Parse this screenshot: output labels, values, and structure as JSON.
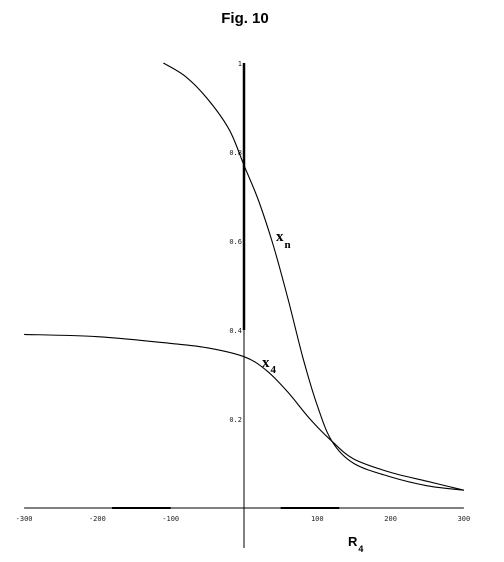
{
  "title": "Fig. 10",
  "chart_data": {
    "type": "line",
    "title": "Fig. 10",
    "xlabel": "R",
    "xlabel_sub": "4",
    "ylabel": "",
    "xlim": [
      -300,
      300
    ],
    "ylim": [
      0,
      1
    ],
    "x_ticks": [
      "-300",
      "-200",
      "-100",
      "100",
      "200",
      "300"
    ],
    "x_tick_values": [
      -300,
      -200,
      -100,
      100,
      200,
      300
    ],
    "y_ticks": [
      "0.2",
      "0.4",
      "0.6",
      "0.8",
      "1"
    ],
    "y_tick_values": [
      0.2,
      0.4,
      0.6,
      0.8,
      1
    ],
    "grid": false,
    "series": [
      {
        "name": "x",
        "name_sub": "n",
        "x": [
          -110,
          -80,
          -50,
          -20,
          0,
          20,
          40,
          60,
          80,
          100,
          120,
          150,
          200,
          250,
          300
        ],
        "y": [
          1.0,
          0.97,
          0.92,
          0.85,
          0.77,
          0.69,
          0.59,
          0.47,
          0.34,
          0.23,
          0.15,
          0.1,
          0.07,
          0.05,
          0.04
        ]
      },
      {
        "name": "x",
        "name_sub": "4",
        "x": [
          -300,
          -200,
          -100,
          -50,
          0,
          30,
          60,
          90,
          120,
          150,
          200,
          250,
          300
        ],
        "y": [
          0.39,
          0.385,
          0.37,
          0.36,
          0.34,
          0.31,
          0.26,
          0.2,
          0.15,
          0.11,
          0.08,
          0.06,
          0.04
        ]
      }
    ]
  }
}
